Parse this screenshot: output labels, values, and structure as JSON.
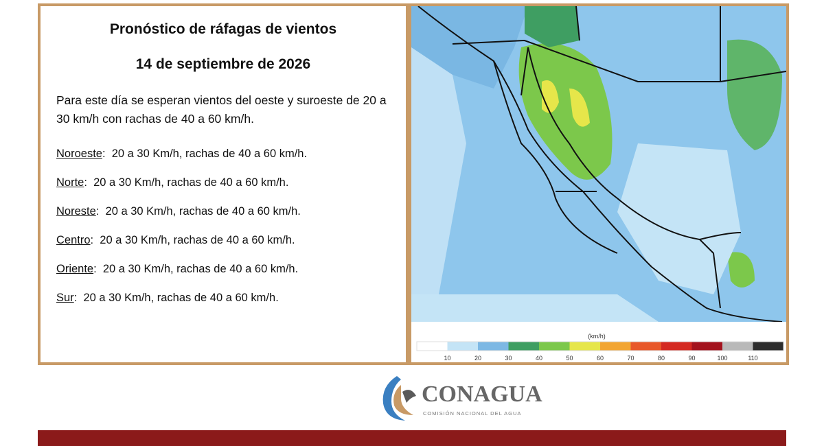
{
  "header": {
    "title": "Pronóstico de ráfagas de vientos",
    "date": "14 de septiembre  de 2026"
  },
  "intro": "Para este día se esperan vientos del oeste y suroeste de 20 a 30 km/h con rachas de 40 a 60 km/h.",
  "regions": [
    {
      "name": "Noroeste",
      "text": ":  20 a 30 Km/h, rachas de 40 a 60 km/h."
    },
    {
      "name": "Norte",
      "text": ":  20 a 30 Km/h, rachas de 40 a 60 km/h."
    },
    {
      "name": "Noreste",
      "text": ":  20 a 30 Km/h, rachas de 40 a 60 km/h."
    },
    {
      "name": "Centro",
      "text": ":  20 a 30 Km/h, rachas de 40 a 60 km/h."
    },
    {
      "name": "Oriente",
      "text": ":  20 a 30 Km/h, rachas de 40 a 60 km/h."
    },
    {
      "name": "Sur",
      "text": ":  20 a 30 Km/h, rachas de 40 a 60 km/h."
    }
  ],
  "legend": {
    "unit": "(km/h)",
    "ticks": [
      10,
      20,
      30,
      40,
      50,
      60,
      70,
      80,
      90,
      100,
      110
    ],
    "colors": [
      "#ffffff",
      "#c4e4f6",
      "#7db8e4",
      "#3f9e62",
      "#7cc84b",
      "#e6e64a",
      "#f2a533",
      "#e8582a",
      "#d42a22",
      "#a3131e",
      "#b9b9b9",
      "#2e2e2e"
    ]
  },
  "logo": {
    "name": "CONAGUA",
    "subtitle": "COMISIÓN NACIONAL DEL AGUA"
  }
}
